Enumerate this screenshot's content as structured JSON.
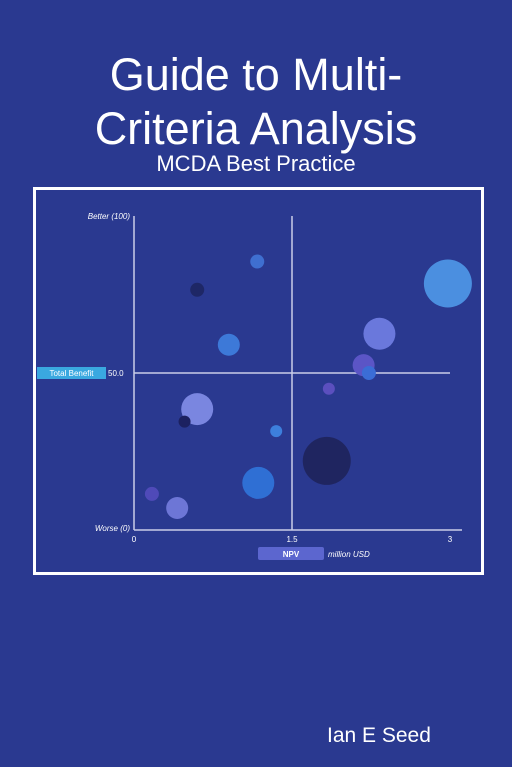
{
  "cover": {
    "title_line1": "Guide to Multi-",
    "title_line2": "Criteria Analysis",
    "subtitle": "MCDA Best Practice",
    "author": "Ian E Seed"
  },
  "colors": {
    "background": "#2a3990",
    "frame": "#ffffff",
    "total_benefit_tag": "#3aa8e0",
    "npv_tag": "#5c66cf"
  },
  "chart_data": {
    "type": "scatter",
    "y_top_label": "Better (100)",
    "y_bottom_label": "Worse (0)",
    "y_mid_label": "50.0",
    "y_axis_tag": "Total Benefit",
    "x_axis_tag": "NPV",
    "x_unit": "million USD",
    "x_ticks": [
      "0",
      "1.5",
      "3"
    ],
    "xlim": [
      0,
      3
    ],
    "ylim": [
      0,
      100
    ],
    "points": [
      {
        "x": 2.98,
        "y": 78.5,
        "r": 24,
        "color": "#4b8fe0"
      },
      {
        "x": 1.17,
        "y": 85.5,
        "r": 7,
        "color": "#3f6fd0"
      },
      {
        "x": 0.6,
        "y": 76.5,
        "r": 7,
        "color": "#1e2766"
      },
      {
        "x": 2.33,
        "y": 62.5,
        "r": 16,
        "color": "#6a78dc"
      },
      {
        "x": 0.9,
        "y": 59.0,
        "r": 11,
        "color": "#3d79d8"
      },
      {
        "x": 2.18,
        "y": 52.5,
        "r": 11,
        "color": "#5b55c6"
      },
      {
        "x": 2.23,
        "y": 50.0,
        "r": 7,
        "color": "#3b6dd6"
      },
      {
        "x": 1.85,
        "y": 45.0,
        "r": 6,
        "color": "#5b4fbe"
      },
      {
        "x": 0.6,
        "y": 38.5,
        "r": 16,
        "color": "#7a86e0"
      },
      {
        "x": 0.48,
        "y": 34.5,
        "r": 6,
        "color": "#1c2160"
      },
      {
        "x": 1.35,
        "y": 31.5,
        "r": 6,
        "color": "#3d7fdc"
      },
      {
        "x": 1.83,
        "y": 22.0,
        "r": 24,
        "color": "#1f2560"
      },
      {
        "x": 1.18,
        "y": 15.0,
        "r": 16,
        "color": "#2f6fd4"
      },
      {
        "x": 0.17,
        "y": 11.5,
        "r": 7,
        "color": "#4f4ab8"
      },
      {
        "x": 0.41,
        "y": 7.0,
        "r": 11,
        "color": "#6d76d6"
      }
    ]
  }
}
